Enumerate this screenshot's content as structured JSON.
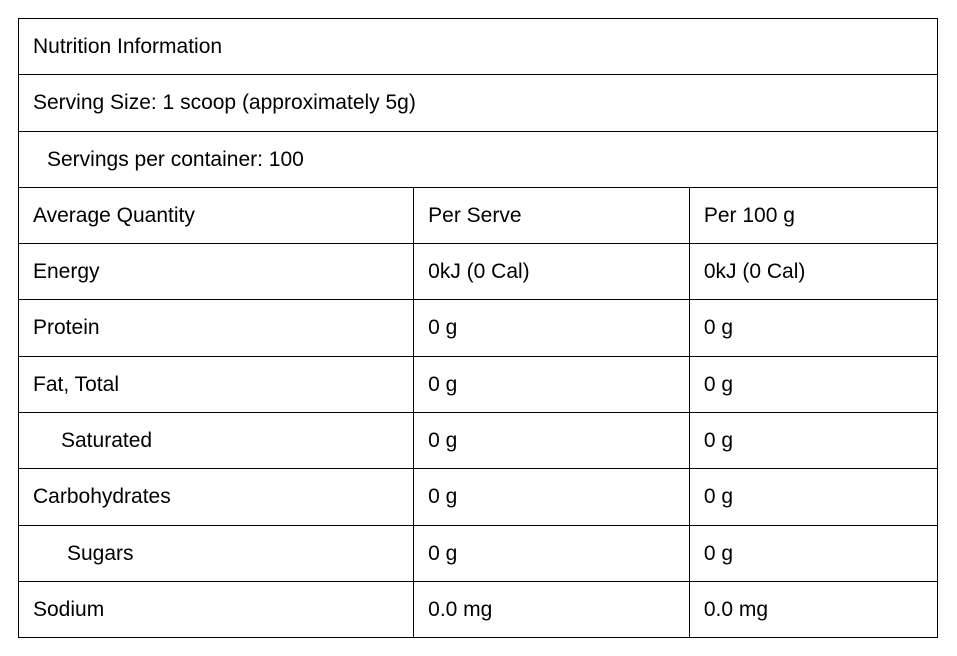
{
  "title": "Nutrition Information",
  "serving_size": "Serving Size: 1 scoop (approximately 5g)",
  "servings_per_container": "Servings per container: 100",
  "columns": {
    "c1": "Average Quantity",
    "c2": "Per Serve",
    "c3": "Per 100 g"
  },
  "rows": [
    {
      "label": "Energy",
      "indent": "none",
      "per_serve": "0kJ (0 Cal)",
      "per_100g": "0kJ (0 Cal)"
    },
    {
      "label": "Protein",
      "indent": "none",
      "per_serve": "0 g",
      "per_100g": "0 g"
    },
    {
      "label": "Fat, Total",
      "indent": "none",
      "per_serve": "0 g",
      "per_100g": "0 g"
    },
    {
      "label": "Saturated",
      "indent": "med",
      "per_serve": "0 g",
      "per_100g": "0 g"
    },
    {
      "label": "Carbohydrates",
      "indent": "none",
      "per_serve": "0 g",
      "per_100g": "0 g"
    },
    {
      "label": "Sugars",
      "indent": "large",
      "per_serve": "0 g",
      "per_100g": "0 g"
    },
    {
      "label": "Sodium",
      "indent": "none",
      "per_serve": "0.0 mg",
      "per_100g": "0.0 mg"
    }
  ],
  "styling": {
    "border_color": "#000000",
    "background_color": "#ffffff",
    "text_color": "#000000",
    "title_fontsize": 23,
    "body_fontsize": 21,
    "border_width": 1.5
  }
}
